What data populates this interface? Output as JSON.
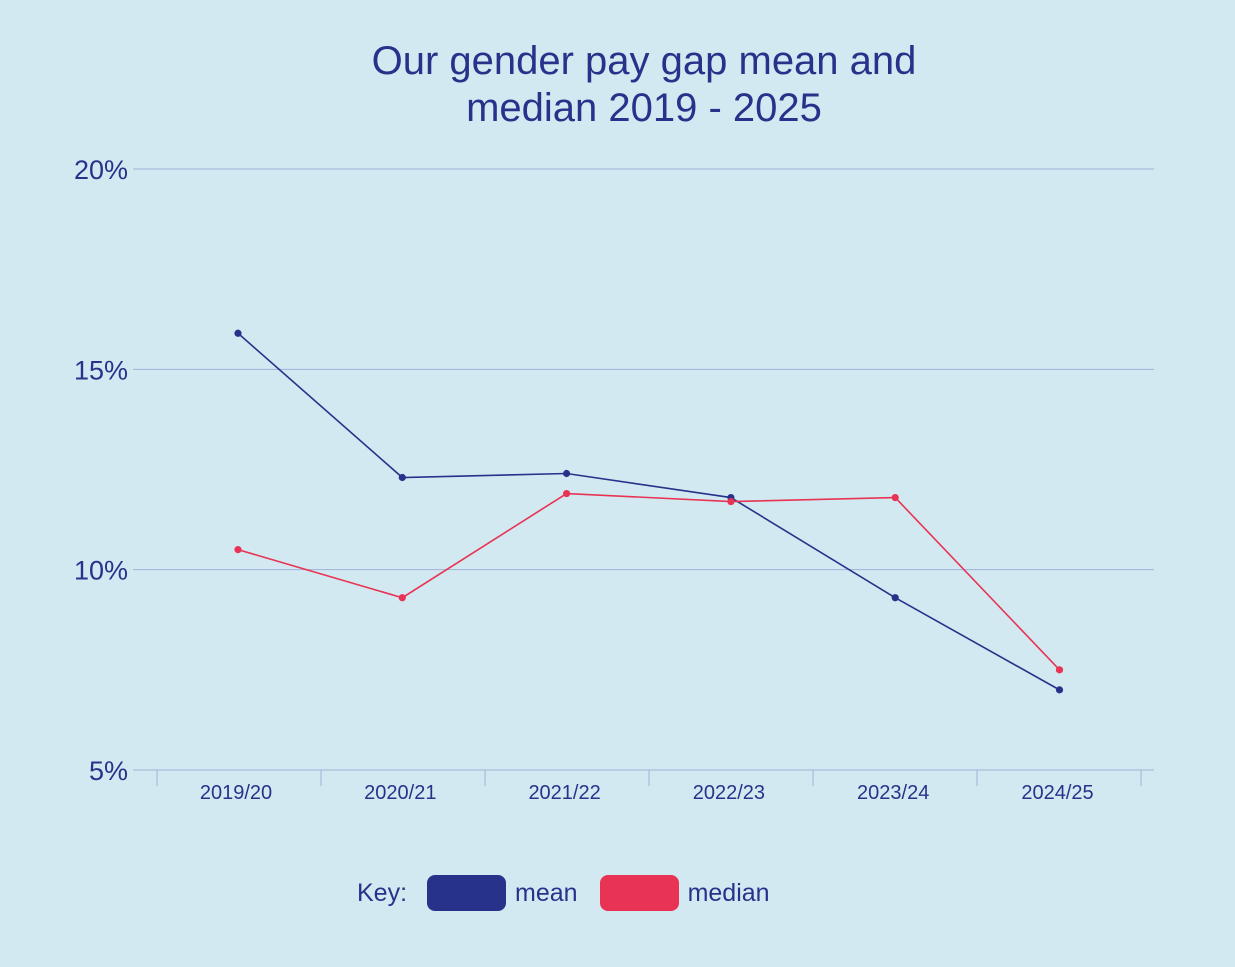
{
  "chart_data": {
    "type": "line",
    "title_lines": [
      "Our gender pay gap mean and",
      "median 2019 - 2025"
    ],
    "categories": [
      "2019/20",
      "2020/21",
      "2021/22",
      "2022/23",
      "2023/24",
      "2024/25"
    ],
    "y_ticks": [
      "20%",
      "15%",
      "10%",
      "5%"
    ],
    "y_tick_values": [
      20,
      15,
      10,
      5
    ],
    "ylim": [
      5,
      20
    ],
    "grid": true,
    "legend_position": "bottom",
    "legend_key_label": "Key:",
    "series": [
      {
        "name": "mean",
        "color": "#27328a",
        "values": [
          15.9,
          12.3,
          12.4,
          11.8,
          9.3,
          7.0
        ]
      },
      {
        "name": "median",
        "color": "#e83354",
        "values": [
          10.5,
          9.3,
          11.9,
          11.7,
          11.8,
          7.5
        ]
      }
    ]
  }
}
